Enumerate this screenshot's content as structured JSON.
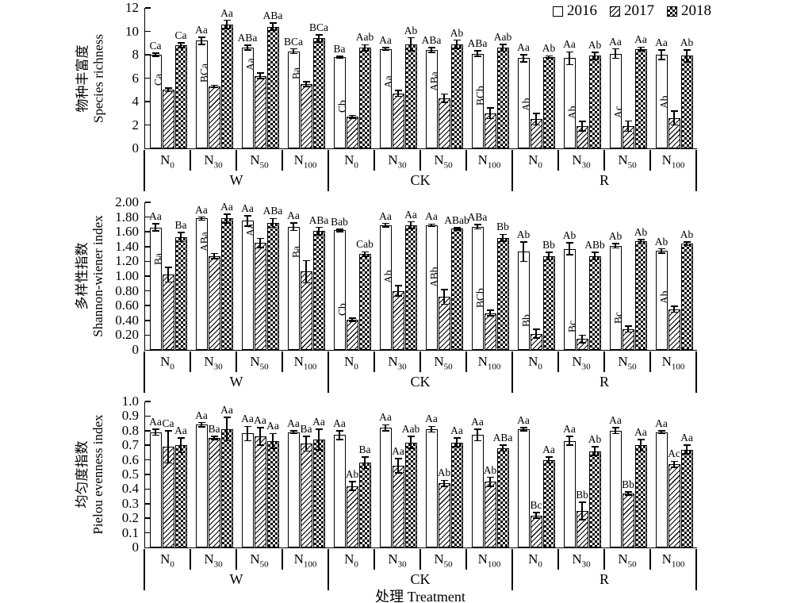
{
  "legend": {
    "items": [
      {
        "label": "2016",
        "pattern": "plain"
      },
      {
        "label": "2017",
        "pattern": "hatch"
      },
      {
        "label": "2018",
        "pattern": "checker"
      }
    ]
  },
  "xlabel": "处理 Treatment",
  "groups": [
    "W",
    "CK",
    "R"
  ],
  "categories": [
    {
      "base": "N",
      "sub": "0"
    },
    {
      "base": "N",
      "sub": "30"
    },
    {
      "base": "N",
      "sub": "50"
    },
    {
      "base": "N",
      "sub": "100"
    }
  ],
  "colors": {
    "ink": "#000000",
    "background": "#ffffff"
  },
  "chart_data": [
    {
      "id": "species-richness",
      "type": "bar",
      "ylabel_cn": "物种丰富度",
      "ylabel_en": "Species richness",
      "ymax": 12,
      "yticks": [
        "0",
        "2",
        "4",
        "6",
        "8",
        "10",
        "12"
      ],
      "grid": false,
      "legend_position": "top-right",
      "series": [
        {
          "name": "2016",
          "pattern": "plain",
          "labels_vertical": false,
          "values": [
            [
              8.0,
              9.2,
              8.6,
              8.3
            ],
            [
              7.8,
              8.5,
              8.4,
              8.1
            ],
            [
              7.7,
              7.7,
              8.1,
              8.0
            ]
          ],
          "errors": [
            [
              0.12,
              0.3,
              0.2,
              0.2
            ],
            [
              0.05,
              0.12,
              0.2,
              0.25
            ],
            [
              0.3,
              0.55,
              0.4,
              0.4
            ]
          ],
          "labels": [
            [
              "Ca",
              "Aa",
              "ABa",
              "BCa"
            ],
            [
              "Ba",
              "Aa",
              "ABa",
              "ABa"
            ],
            [
              "Aa",
              "Aa",
              "Aa",
              "Aa"
            ]
          ]
        },
        {
          "name": "2017",
          "pattern": "hatch",
          "labels_vertical": true,
          "values": [
            [
              5.0,
              5.3,
              6.2,
              5.5
            ],
            [
              2.7,
              4.7,
              4.3,
              3.0
            ],
            [
              2.5,
              1.9,
              1.9,
              2.6
            ]
          ],
          "errors": [
            [
              0.15,
              0.1,
              0.25,
              0.2
            ],
            [
              0.12,
              0.25,
              0.35,
              0.45
            ],
            [
              0.5,
              0.4,
              0.45,
              0.6
            ]
          ],
          "labels": [
            [
              "Ca",
              "BCa",
              "Aa",
              "Ba"
            ],
            [
              "Cb",
              "Aa",
              "ABa",
              "BCb"
            ],
            [
              "Ab",
              "Ab",
              "Ac",
              "Ab"
            ]
          ]
        },
        {
          "name": "2018",
          "pattern": "checker",
          "labels_vertical": false,
          "values": [
            [
              8.8,
              10.6,
              10.4,
              9.4
            ],
            [
              8.6,
              8.9,
              8.9,
              8.6
            ],
            [
              7.8,
              7.9,
              8.5,
              7.9
            ]
          ],
          "errors": [
            [
              0.2,
              0.35,
              0.3,
              0.3
            ],
            [
              0.25,
              0.55,
              0.35,
              0.3
            ],
            [
              0.1,
              0.3,
              0.15,
              0.5
            ]
          ],
          "labels": [
            [
              "Ca",
              "Aa",
              "ABa",
              "BCa"
            ],
            [
              "Aab",
              "Ab",
              "Ab",
              "Aab"
            ],
            [
              "Ab",
              "Ab",
              "Aa",
              "Ab"
            ]
          ]
        }
      ]
    },
    {
      "id": "shannon-wiener",
      "type": "bar",
      "ylabel_cn": "多样性指数",
      "ylabel_en": "Shannon-wiener index",
      "ymax": 2.0,
      "yticks": [
        "0",
        "0.20",
        "0.40",
        "0.60",
        "0.80",
        "1.00",
        "1.20",
        "1.40",
        "1.60",
        "1.80",
        "2.00"
      ],
      "grid": false,
      "series": [
        {
          "name": "2016",
          "pattern": "plain",
          "labels_vertical": false,
          "values": [
            [
              1.66,
              1.78,
              1.75,
              1.67
            ],
            [
              1.62,
              1.69,
              1.69,
              1.67
            ],
            [
              1.33,
              1.37,
              1.41,
              1.34
            ]
          ],
          "errors": [
            [
              0.05,
              0.02,
              0.07,
              0.05
            ],
            [
              0.015,
              0.025,
              0.015,
              0.03
            ],
            [
              0.13,
              0.08,
              0.03,
              0.03
            ]
          ],
          "labels": [
            [
              "Aa",
              "Aa",
              "Aa",
              "Aa"
            ],
            [
              "Bab",
              "Aa",
              "Aa",
              "ABa"
            ],
            [
              "Ab",
              "Ab",
              "Ab",
              "Ab"
            ]
          ]
        },
        {
          "name": "2017",
          "pattern": "hatch",
          "labels_vertical": true,
          "values": [
            [
              1.02,
              1.27,
              1.45,
              1.06
            ],
            [
              0.41,
              0.8,
              0.72,
              0.5
            ],
            [
              0.22,
              0.15,
              0.28,
              0.55
            ]
          ],
          "errors": [
            [
              0.1,
              0.035,
              0.06,
              0.15
            ],
            [
              0.02,
              0.07,
              0.1,
              0.04
            ],
            [
              0.06,
              0.05,
              0.04,
              0.04
            ]
          ],
          "labels": [
            [
              "Ba",
              "ABa",
              "Aa",
              "Ba"
            ],
            [
              "Cb",
              "Ab",
              "ABb",
              "BCb"
            ],
            [
              "Bb",
              "Bc",
              "Bc",
              "Ab"
            ]
          ]
        },
        {
          "name": "2018",
          "pattern": "checker",
          "labels_vertical": false,
          "values": [
            [
              1.53,
              1.78,
              1.72,
              1.61
            ],
            [
              1.3,
              1.69,
              1.64,
              1.52
            ],
            [
              1.27,
              1.27,
              1.47,
              1.44
            ]
          ],
          "errors": [
            [
              0.06,
              0.06,
              0.06,
              0.05
            ],
            [
              0.03,
              0.045,
              0.015,
              0.045
            ],
            [
              0.05,
              0.05,
              0.025,
              0.025
            ]
          ],
          "labels": [
            [
              "Ba",
              "Aa",
              "ABa",
              "ABa"
            ],
            [
              "Cab",
              "Aa",
              "ABab",
              "Bb"
            ],
            [
              "Bb",
              "ABb",
              "Ab",
              "Ab"
            ]
          ]
        }
      ]
    },
    {
      "id": "pielou-evenness",
      "type": "bar",
      "ylabel_cn": "均匀度指数",
      "ylabel_en": "Pielou evenness index",
      "ymax": 1.0,
      "yticks": [
        "0",
        "0.1",
        "0.2",
        "0.3",
        "0.4",
        "0.5",
        "0.6",
        "0.7",
        "0.8",
        "0.9",
        "1.0"
      ],
      "grid": false,
      "series": [
        {
          "name": "2016",
          "pattern": "plain",
          "labels_vertical": false,
          "values": [
            [
              0.79,
              0.84,
              0.78,
              0.79
            ],
            [
              0.77,
              0.82,
              0.81,
              0.77
            ],
            [
              0.81,
              0.73,
              0.8,
              0.79
            ]
          ],
          "errors": [
            [
              0.02,
              0.015,
              0.05,
              0.01
            ],
            [
              0.03,
              0.02,
              0.02,
              0.04
            ],
            [
              0.012,
              0.03,
              0.02,
              0.01
            ]
          ],
          "labels": [
            [
              "Aa",
              "Aa",
              "Aa",
              "Aa"
            ],
            [
              "Aa",
              "Aa",
              "Aa",
              "Aa"
            ],
            [
              "Aa",
              "Aa",
              "Aa",
              "Aa"
            ]
          ]
        },
        {
          "name": "2017",
          "pattern": "hatch",
          "labels_vertical": false,
          "values": [
            [
              0.69,
              0.75,
              0.76,
              0.71
            ],
            [
              0.42,
              0.56,
              0.44,
              0.45
            ],
            [
              0.22,
              0.25,
              0.37,
              0.57
            ]
          ],
          "errors": [
            [
              0.11,
              0.01,
              0.06,
              0.05
            ],
            [
              0.03,
              0.05,
              0.02,
              0.03
            ],
            [
              0.02,
              0.06,
              0.012,
              0.02
            ]
          ],
          "labels": [
            [
              "Ca",
              "Ba",
              "Aa",
              "Ba"
            ],
            [
              "Ab",
              "Aa",
              "Ab",
              "Ab"
            ],
            [
              "Bc",
              "Bb",
              "Bb",
              "Ac"
            ]
          ]
        },
        {
          "name": "2018",
          "pattern": "checker",
          "labels_vertical": false,
          "values": [
            [
              0.7,
              0.81,
              0.73,
              0.74
            ],
            [
              0.58,
              0.72,
              0.72,
              0.68
            ],
            [
              0.6,
              0.66,
              0.7,
              0.67
            ]
          ],
          "errors": [
            [
              0.05,
              0.08,
              0.05,
              0.07
            ],
            [
              0.04,
              0.04,
              0.03,
              0.02
            ],
            [
              0.02,
              0.03,
              0.04,
              0.03
            ]
          ],
          "labels": [
            [
              "Aa",
              "Aa",
              "Aa",
              "Aa"
            ],
            [
              "Ba",
              "Aab",
              "Aa",
              "ABa"
            ],
            [
              "Aa",
              "Ab",
              "Aa",
              "Aa"
            ]
          ]
        }
      ]
    }
  ]
}
